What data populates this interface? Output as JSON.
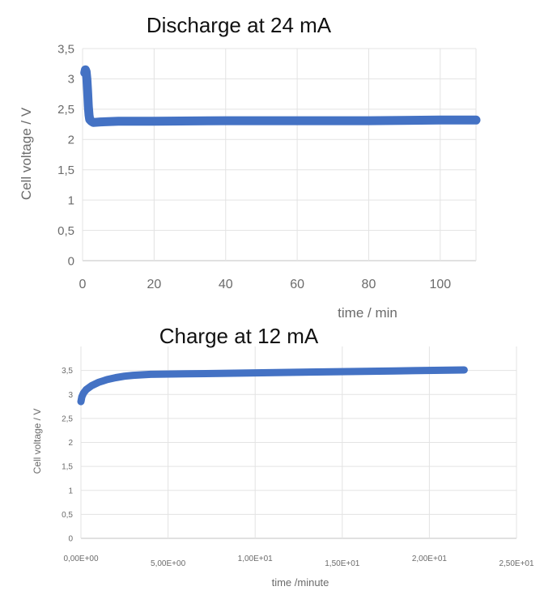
{
  "chart_data": [
    {
      "type": "line",
      "title": "Discharge at 24 mA",
      "xlabel": "time / min",
      "ylabel": "Cell voltage / V",
      "xlim": [
        0,
        110
      ],
      "ylim": [
        0,
        3.5
      ],
      "x_ticks": [
        "0",
        "20",
        "40",
        "60",
        "80",
        "100"
      ],
      "x_tick_values": [
        0,
        20,
        40,
        60,
        80,
        100
      ],
      "y_ticks": [
        "0",
        "0,5",
        "1",
        "1,5",
        "2",
        "2,5",
        "3",
        "3,5"
      ],
      "y_tick_values": [
        0,
        0.5,
        1,
        1.5,
        2,
        2.5,
        3,
        3.5
      ],
      "grid": true,
      "series_color": "#4472c4",
      "series": [
        {
          "x": [
            0.6,
            0.8,
            1.0,
            1.2,
            1.4,
            1.6,
            1.8,
            2.0,
            2.5,
            3,
            5,
            10,
            20,
            40,
            60,
            80,
            100,
            110
          ],
          "y": [
            3.1,
            3.15,
            3.12,
            3.0,
            2.8,
            2.55,
            2.4,
            2.33,
            2.3,
            2.28,
            2.29,
            2.3,
            2.3,
            2.31,
            2.31,
            2.31,
            2.32,
            2.32
          ]
        }
      ]
    },
    {
      "type": "line",
      "title": "Charge at 12 mA",
      "xlabel": "time /minute",
      "ylabel": "Cell voltage / V",
      "xlim": [
        0,
        25
      ],
      "ylim": [
        0,
        4
      ],
      "x_ticks": [
        "0,00E+00",
        "5,00E+00",
        "1,00E+01",
        "1,50E+01",
        "2,00E+01",
        "2,50E+01"
      ],
      "x_tick_values": [
        0,
        5,
        10,
        15,
        20,
        25
      ],
      "y_ticks": [
        "0",
        "0,5",
        "1",
        "1,5",
        "2",
        "2,5",
        "3",
        "3,5"
      ],
      "y_tick_values": [
        0,
        0.5,
        1,
        1.5,
        2,
        2.5,
        3,
        3.5
      ],
      "grid": true,
      "series_color": "#4472c4",
      "series": [
        {
          "x": [
            0,
            0.05,
            0.15,
            0.3,
            0.6,
            1.0,
            1.5,
            2.0,
            2.5,
            3.0,
            4,
            6,
            8,
            10,
            14,
            18,
            22
          ],
          "y": [
            2.85,
            2.95,
            3.03,
            3.1,
            3.18,
            3.25,
            3.31,
            3.35,
            3.38,
            3.4,
            3.42,
            3.43,
            3.44,
            3.45,
            3.47,
            3.49,
            3.51
          ]
        }
      ]
    }
  ]
}
